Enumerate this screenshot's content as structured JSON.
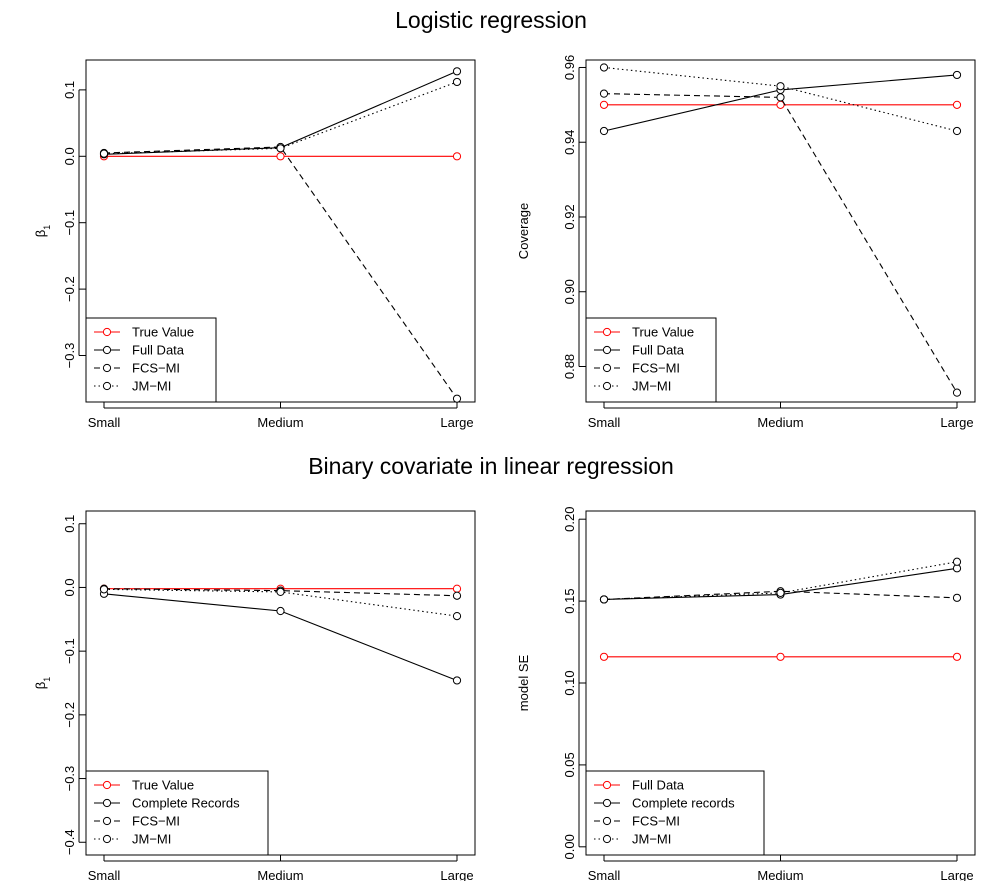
{
  "titles": {
    "top": "Logistic regression",
    "bottom": "Binary covariate in linear regression"
  },
  "chart_data": [
    {
      "type": "line",
      "section": "top",
      "ylabel": "β1",
      "categories": [
        "Small",
        "Medium",
        "Large"
      ],
      "ylim": [
        -0.37,
        0.145
      ],
      "yticks": [
        0.1,
        0.0,
        -0.1,
        -0.2,
        -0.3
      ],
      "ytick_labels": [
        "0.1",
        "0.0",
        "−0.1",
        "−0.2",
        "−0.3"
      ],
      "legend_position": "bottom-left",
      "series": [
        {
          "name": "True Value",
          "values": [
            0.0,
            0.0,
            0.0
          ],
          "color": "#ff0000",
          "dash": "solid"
        },
        {
          "name": "Full Data",
          "values": [
            0.003,
            0.013,
            0.128
          ],
          "color": "#000000",
          "dash": "solid"
        },
        {
          "name": "FCS−MI",
          "values": [
            0.005,
            0.014,
            -0.365
          ],
          "color": "#000000",
          "dash": "dashed"
        },
        {
          "name": "JM−MI",
          "values": [
            0.004,
            0.012,
            0.112
          ],
          "color": "#000000",
          "dash": "dotted"
        }
      ]
    },
    {
      "type": "line",
      "section": "top",
      "ylabel": "Coverage",
      "categories": [
        "Small",
        "Medium",
        "Large"
      ],
      "ylim": [
        0.8705,
        0.962
      ],
      "yticks": [
        0.96,
        0.94,
        0.92,
        0.9,
        0.88
      ],
      "ytick_labels": [
        "0.96",
        "0.94",
        "0.92",
        "0.90",
        "0.88"
      ],
      "legend_position": "bottom-left",
      "series": [
        {
          "name": "True Value",
          "values": [
            0.95,
            0.95,
            0.95
          ],
          "color": "#ff0000",
          "dash": "solid"
        },
        {
          "name": "Full Data",
          "values": [
            0.943,
            0.954,
            0.958
          ],
          "color": "#000000",
          "dash": "solid"
        },
        {
          "name": "FCS−MI",
          "values": [
            0.953,
            0.952,
            0.873
          ],
          "color": "#000000",
          "dash": "dashed"
        },
        {
          "name": "JM−MI",
          "values": [
            0.96,
            0.955,
            0.943
          ],
          "color": "#000000",
          "dash": "dotted"
        }
      ]
    },
    {
      "type": "line",
      "section": "bottom",
      "ylabel": "β1",
      "categories": [
        "Small",
        "Medium",
        "Large"
      ],
      "ylim": [
        -0.42,
        0.12
      ],
      "yticks": [
        0.1,
        0.0,
        -0.1,
        -0.2,
        -0.3,
        -0.4
      ],
      "ytick_labels": [
        "0.1",
        "0.0",
        "−0.1",
        "−0.2",
        "−0.3",
        "−0.4"
      ],
      "legend_position": "bottom-left",
      "series": [
        {
          "name": "True Value",
          "values": [
            -0.002,
            -0.002,
            -0.002
          ],
          "color": "#ff0000",
          "dash": "solid"
        },
        {
          "name": "Complete Records",
          "values": [
            -0.01,
            -0.037,
            -0.146
          ],
          "color": "#000000",
          "dash": "solid"
        },
        {
          "name": "FCS−MI",
          "values": [
            -0.002,
            -0.005,
            -0.013
          ],
          "color": "#000000",
          "dash": "dashed"
        },
        {
          "name": "JM−MI",
          "values": [
            -0.003,
            -0.007,
            -0.045
          ],
          "color": "#000000",
          "dash": "dotted"
        }
      ]
    },
    {
      "type": "line",
      "section": "bottom",
      "ylabel": "model SE",
      "categories": [
        "Small",
        "Medium",
        "Large"
      ],
      "ylim": [
        -0.005,
        0.205
      ],
      "yticks": [
        0.2,
        0.15,
        0.1,
        0.05,
        0.0
      ],
      "ytick_labels": [
        "0.20",
        "0.15",
        "0.10",
        "0.05",
        "0.00"
      ],
      "legend_position": "bottom-left",
      "series": [
        {
          "name": "Full Data",
          "values": [
            0.116,
            0.116,
            0.116
          ],
          "color": "#ff0000",
          "dash": "solid"
        },
        {
          "name": "Complete records",
          "values": [
            0.151,
            0.154,
            0.17
          ],
          "color": "#000000",
          "dash": "solid"
        },
        {
          "name": "FCS−MI",
          "values": [
            0.151,
            0.156,
            0.152
          ],
          "color": "#000000",
          "dash": "dashed"
        },
        {
          "name": "JM−MI",
          "values": [
            0.151,
            0.155,
            0.174
          ],
          "color": "#000000",
          "dash": "dotted"
        }
      ]
    }
  ]
}
